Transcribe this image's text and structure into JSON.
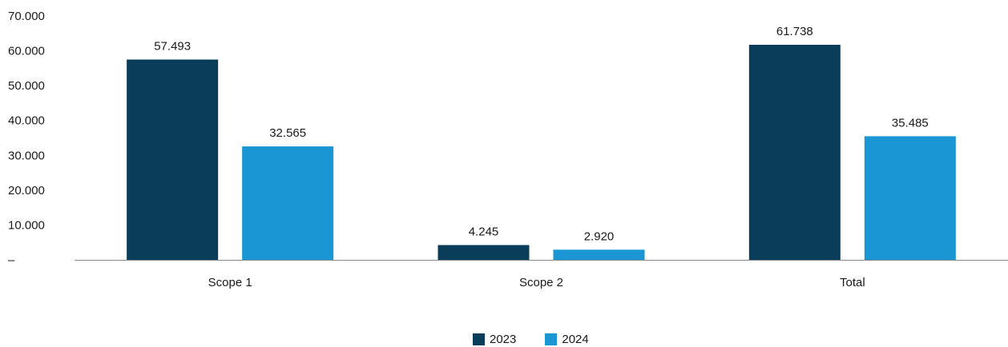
{
  "chart_data": {
    "type": "bar",
    "categories": [
      "Scope 1",
      "Scope 2",
      "Total"
    ],
    "series": [
      {
        "name": "2023",
        "values": [
          57493,
          4245,
          61738
        ],
        "labels": [
          "57.493",
          "4.245",
          "61.738"
        ],
        "color": "#0a3d5a"
      },
      {
        "name": "2024",
        "values": [
          32565,
          2920,
          35485
        ],
        "labels": [
          "32.565",
          "2.920",
          "35.485"
        ],
        "color": "#1a96d4"
      }
    ],
    "y_ticks": [
      {
        "value": 0,
        "label": "–"
      },
      {
        "value": 10000,
        "label": "10.000"
      },
      {
        "value": 20000,
        "label": "20.000"
      },
      {
        "value": 30000,
        "label": "30.000"
      },
      {
        "value": 40000,
        "label": "40.000"
      },
      {
        "value": 50000,
        "label": "50.000"
      },
      {
        "value": 60000,
        "label": "60.000"
      },
      {
        "value": 70000,
        "label": "70.000"
      }
    ],
    "ylim": [
      0,
      70000
    ],
    "grid": false,
    "legend_position": "bottom"
  }
}
